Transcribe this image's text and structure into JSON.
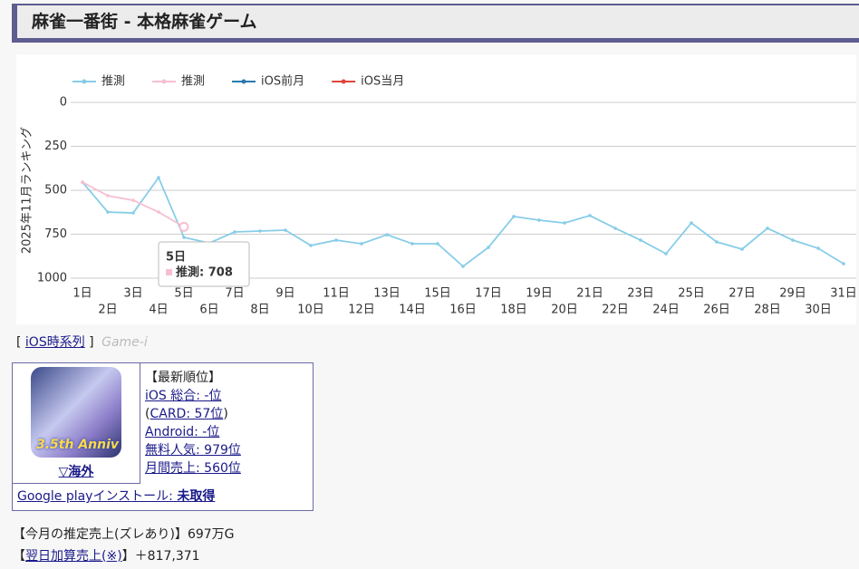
{
  "header": {
    "title": "麻雀一番街 - 本格麻雀ゲーム"
  },
  "chart_data": {
    "type": "line",
    "y_axis_label": "2025年11月ランキング",
    "categories": [
      "1日",
      "2日",
      "3日",
      "4日",
      "5日",
      "6日",
      "7日",
      "8日",
      "9日",
      "10日",
      "11日",
      "12日",
      "13日",
      "14日",
      "15日",
      "16日",
      "17日",
      "18日",
      "19日",
      "20日",
      "21日",
      "22日",
      "23日",
      "24日",
      "25日",
      "26日",
      "27日",
      "28日",
      "29日",
      "30日",
      "31日"
    ],
    "series": [
      {
        "name": "推測",
        "color": "#87cde8",
        "values": [
          454,
          624,
          629,
          428,
          768,
          800,
          737,
          732,
          727,
          814,
          784,
          804,
          753,
          804,
          804,
          933,
          825,
          649,
          670,
          686,
          644,
          716,
          784,
          861,
          686,
          794,
          835,
          716,
          784,
          830,
          918
        ]
      },
      {
        "name": "推測",
        "color": "#f7bfd0",
        "values": [
          454,
          531,
          557,
          624,
          708,
          null,
          null,
          null,
          null,
          null,
          null,
          null,
          null,
          null,
          null,
          null,
          null,
          null,
          null,
          null,
          null,
          null,
          null,
          null,
          null,
          null,
          null,
          null,
          null,
          null,
          null
        ]
      },
      {
        "name": "iOS前月",
        "color": "#2a7ab0",
        "values": [
          null,
          null,
          null,
          null,
          null,
          null,
          null,
          null,
          null,
          null,
          null,
          null,
          null,
          null,
          null,
          null,
          null,
          null,
          null,
          null,
          null,
          null,
          null,
          null,
          null,
          null,
          null,
          null,
          null,
          null,
          null
        ]
      },
      {
        "name": "iOS当月",
        "color": "#e0453a",
        "values": [
          null,
          null,
          null,
          null,
          null,
          null,
          null,
          null,
          null,
          null,
          null,
          null,
          null,
          null,
          null,
          null,
          null,
          null,
          null,
          null,
          null,
          null,
          null,
          null,
          null,
          null,
          null,
          null,
          null,
          null,
          null
        ]
      }
    ],
    "ylim": [
      0,
      1000
    ],
    "yticks": [
      0,
      250,
      500,
      750,
      1000
    ],
    "y_inverted": true,
    "grid": true,
    "legend": "top",
    "tooltip": {
      "title": "5日",
      "text": "推測: 708"
    }
  },
  "links": {
    "open": "[",
    "link": "iOS時系列",
    "close": "]",
    "source": "Game-i"
  },
  "app_box": {
    "icon_text": "3.5th Anniv",
    "region": "▽海外",
    "heading": "【最新順位】",
    "ios": "iOS 総合: -位",
    "card_open": "(",
    "card": "CARD: 57位",
    "card_close": ")",
    "android": "Android: -位",
    "free": "無料人気: 979位",
    "monthly": "月間売上: 560位",
    "install_label": "Google playインストール: ",
    "install_value": "未取得"
  },
  "sales": {
    "month_label": "【今月の推定売上(ズレあり)】",
    "month_value": "697万G",
    "next_open": "【",
    "next_link": "翌日加算売上(※)",
    "next_rest": "】＋817,371"
  }
}
